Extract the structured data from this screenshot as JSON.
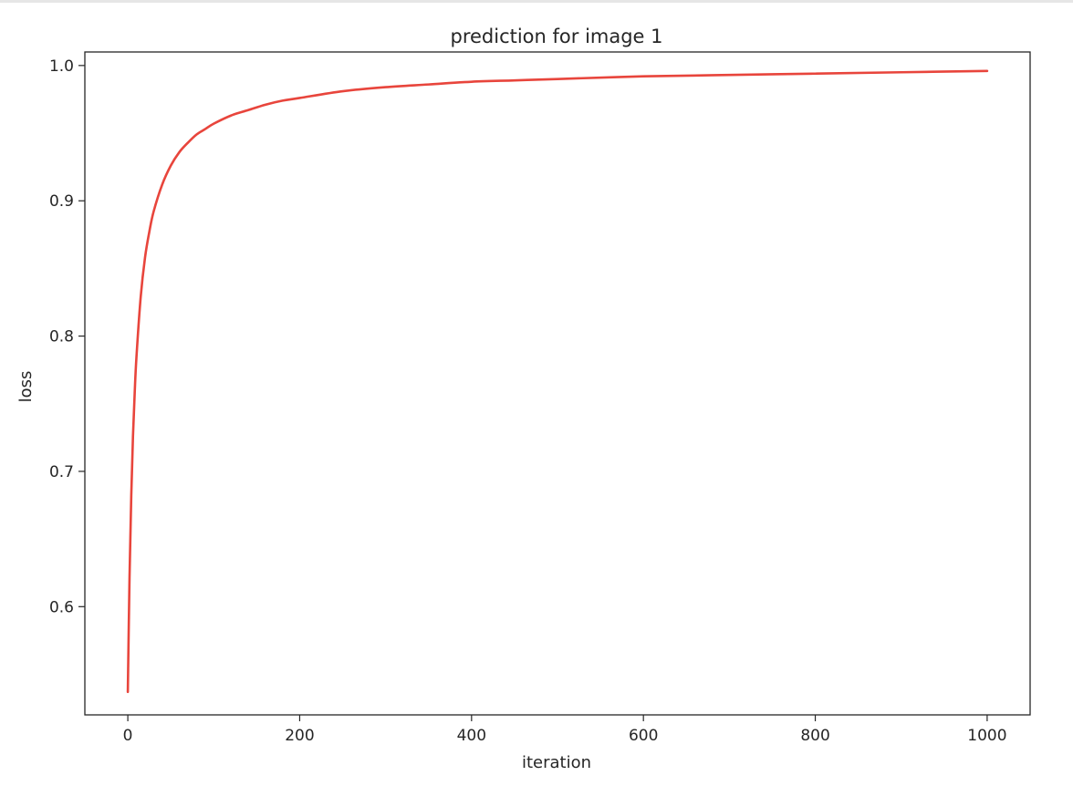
{
  "chart_data": {
    "type": "line",
    "title": "prediction for image 1",
    "xlabel": "iteration",
    "ylabel": "loss",
    "xlim": [
      -50,
      1050
    ],
    "ylim": [
      0.52,
      1.01
    ],
    "xticks": [
      0,
      200,
      400,
      600,
      800,
      1000
    ],
    "yticks": [
      0.6,
      0.7,
      0.8,
      0.9,
      1.0
    ],
    "xtick_labels": [
      "0",
      "200",
      "400",
      "600",
      "800",
      "1000"
    ],
    "ytick_labels": [
      "0.6",
      "0.7",
      "0.8",
      "0.9",
      "1.0"
    ],
    "grid": false,
    "series": [
      {
        "color": "#e8453c",
        "x": [
          0,
          2,
          4,
          6,
          8,
          10,
          15,
          20,
          25,
          30,
          40,
          50,
          60,
          70,
          80,
          90,
          100,
          120,
          140,
          160,
          180,
          200,
          250,
          300,
          350,
          400,
          450,
          500,
          600,
          700,
          800,
          900,
          1000
        ],
        "y": [
          0.537,
          0.622,
          0.682,
          0.726,
          0.758,
          0.784,
          0.829,
          0.858,
          0.877,
          0.892,
          0.912,
          0.926,
          0.936,
          0.943,
          0.949,
          0.953,
          0.957,
          0.963,
          0.967,
          0.971,
          0.974,
          0.976,
          0.981,
          0.984,
          0.986,
          0.988,
          0.989,
          0.99,
          0.992,
          0.993,
          0.994,
          0.995,
          0.996
        ]
      }
    ]
  }
}
